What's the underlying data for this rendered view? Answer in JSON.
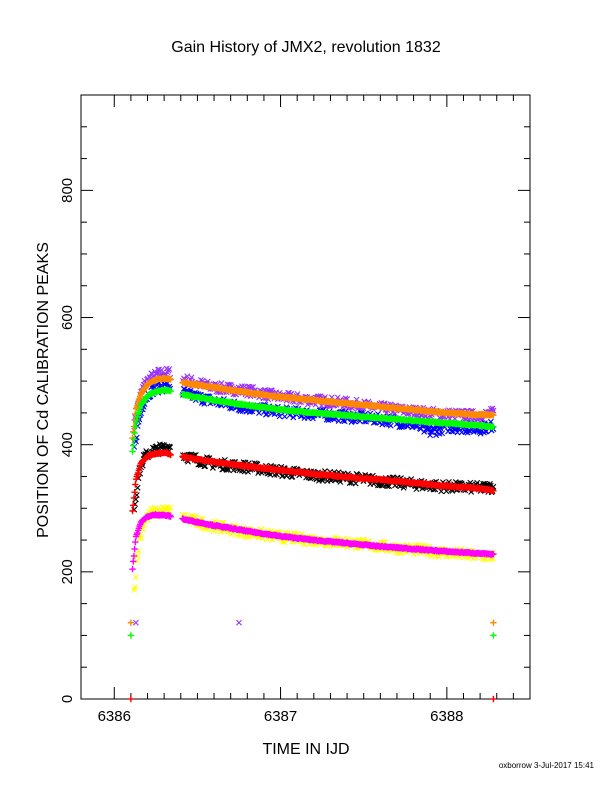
{
  "chart_data": {
    "type": "scatter",
    "title": "Gain History of JMX2, revolution 1832",
    "xlabel": "TIME IN IJD",
    "ylabel": "POSITION OF Cd CALIBRATION PEAKS",
    "xlim": [
      6385.8,
      6388.5
    ],
    "ylim": [
      0,
      950
    ],
    "x_ticks": [
      6386,
      6387,
      6388
    ],
    "y_ticks": [
      0,
      200,
      400,
      600,
      800
    ],
    "grid": false,
    "legend": "none",
    "footer": "oxborrow  3-Jul-2017 15:41",
    "series": [
      {
        "color": "#9933ff",
        "marker": "x",
        "x": [
          6386.12,
          6386.15,
          6386.18,
          6386.22,
          6386.27,
          6386.33,
          6386.45,
          6386.6,
          6386.8,
          6387.0,
          6387.2,
          6387.4,
          6387.6,
          6387.8,
          6388.0,
          6388.2,
          6388.28
        ],
        "y": [
          430,
          470,
          495,
          505,
          512,
          513,
          500,
          490,
          485,
          475,
          470,
          465,
          458,
          452,
          448,
          445,
          450
        ]
      },
      {
        "color": "#0000ff",
        "marker": "x",
        "x": [
          6386.12,
          6386.15,
          6386.18,
          6386.22,
          6386.27,
          6386.33,
          6386.45,
          6386.6,
          6386.8,
          6387.0,
          6387.2,
          6387.4,
          6387.6,
          6387.8,
          6387.9,
          6388.0,
          6388.2,
          6388.28
        ],
        "y": [
          395,
          440,
          470,
          485,
          490,
          492,
          478,
          468,
          458,
          452,
          448,
          444,
          440,
          432,
          420,
          428,
          425,
          430
        ]
      },
      {
        "color": "#000000",
        "marker": "x",
        "x": [
          6386.12,
          6386.15,
          6386.18,
          6386.22,
          6386.27,
          6386.33,
          6386.45,
          6386.6,
          6386.8,
          6387.0,
          6387.2,
          6387.4,
          6387.6,
          6387.8,
          6388.0,
          6388.2,
          6388.28
        ],
        "y": [
          300,
          355,
          380,
          390,
          393,
          397,
          380,
          370,
          365,
          358,
          352,
          348,
          343,
          338,
          334,
          332,
          333
        ]
      },
      {
        "color": "#ffff00",
        "marker": "x",
        "x": [
          6386.12,
          6386.15,
          6386.18,
          6386.22,
          6386.27,
          6386.33,
          6386.45,
          6386.6,
          6386.8,
          6387.0,
          6387.2,
          6387.4,
          6387.6,
          6387.8,
          6388.0,
          6388.2,
          6388.28
        ],
        "y": [
          170,
          250,
          280,
          292,
          295,
          296,
          282,
          272,
          262,
          255,
          250,
          246,
          240,
          235,
          230,
          225,
          225
        ]
      },
      {
        "color": "#ff8800",
        "marker": "+",
        "x": [
          6386.11,
          6386.13,
          6386.16,
          6386.2,
          6386.25,
          6386.3,
          6386.33,
          6386.43,
          6386.6,
          6386.8,
          6387.0,
          6387.2,
          6387.4,
          6387.6,
          6387.8,
          6388.0,
          6388.2,
          6388.28
        ],
        "y": [
          410,
          455,
          480,
          495,
          502,
          504,
          503,
          497,
          490,
          482,
          475,
          470,
          465,
          460,
          455,
          450,
          447,
          447
        ]
      },
      {
        "color": "#00ff00",
        "marker": "+",
        "x": [
          6386.11,
          6386.13,
          6386.16,
          6386.2,
          6386.25,
          6386.3,
          6386.33,
          6386.43,
          6386.6,
          6386.8,
          6387.0,
          6387.2,
          6387.4,
          6387.6,
          6387.8,
          6388.0,
          6388.2,
          6388.28
        ],
        "y": [
          390,
          435,
          462,
          477,
          484,
          486,
          485,
          478,
          470,
          462,
          455,
          450,
          446,
          442,
          438,
          434,
          430,
          428
        ]
      },
      {
        "color": "#ff0000",
        "marker": "+",
        "x": [
          6386.11,
          6386.13,
          6386.16,
          6386.2,
          6386.25,
          6386.3,
          6386.33,
          6386.43,
          6386.6,
          6386.8,
          6387.0,
          6387.2,
          6387.4,
          6387.6,
          6387.8,
          6388.0,
          6388.2,
          6388.28
        ],
        "y": [
          295,
          345,
          370,
          382,
          386,
          388,
          385,
          380,
          373,
          366,
          360,
          354,
          349,
          345,
          340,
          335,
          331,
          328
        ]
      },
      {
        "color": "#ff00ff",
        "marker": "+",
        "x": [
          6386.11,
          6386.13,
          6386.16,
          6386.2,
          6386.25,
          6386.3,
          6386.33,
          6386.43,
          6386.6,
          6386.8,
          6387.0,
          6387.2,
          6387.4,
          6387.6,
          6387.8,
          6388.0,
          6388.2,
          6388.28
        ],
        "y": [
          205,
          255,
          278,
          287,
          290,
          289,
          288,
          282,
          273,
          264,
          256,
          250,
          245,
          240,
          236,
          232,
          229,
          227
        ]
      }
    ],
    "isolated_points": [
      {
        "x": 6386.1,
        "y": 120,
        "color": "#ff8800",
        "marker": "+"
      },
      {
        "x": 6386.1,
        "y": 100,
        "color": "#00ff00",
        "marker": "+"
      },
      {
        "x": 6386.13,
        "y": 120,
        "color": "#9933ff",
        "marker": "x"
      },
      {
        "x": 6386.75,
        "y": 120,
        "color": "#9933ff",
        "marker": "x"
      },
      {
        "x": 6388.28,
        "y": 120,
        "color": "#ff8800",
        "marker": "+"
      },
      {
        "x": 6388.28,
        "y": 100,
        "color": "#00ff00",
        "marker": "+"
      },
      {
        "x": 6386.1,
        "y": 0,
        "color": "#ff0000",
        "marker": "+"
      },
      {
        "x": 6388.28,
        "y": 0,
        "color": "#ff0000",
        "marker": "+"
      }
    ]
  }
}
